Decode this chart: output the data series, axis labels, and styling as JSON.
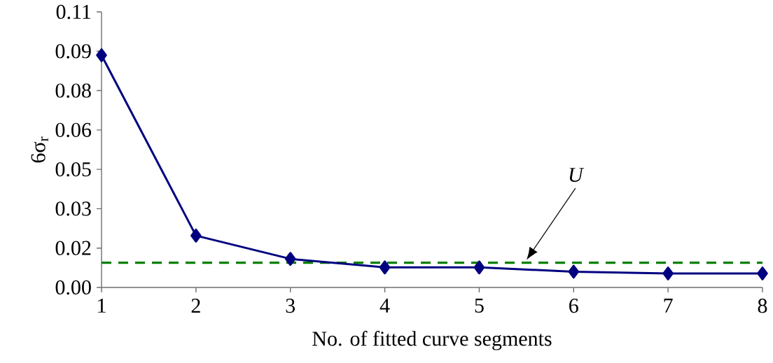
{
  "chart_data": {
    "type": "line",
    "xlabel": "No. of fitted curve segments",
    "ylabel": "6σ$_{r}$",
    "x": [
      1,
      2,
      3,
      4,
      5,
      6,
      7,
      8
    ],
    "series": [
      {
        "color": "#000080",
        "values": [
          0.0927,
          0.0207,
          0.0114,
          0.008,
          0.008,
          0.0063,
          0.0056,
          0.0056
        ]
      }
    ],
    "marker": "diamond",
    "line_style": "solid",
    "grid": false,
    "xlim": [
      1,
      8
    ],
    "xticks": [
      1,
      2,
      3,
      4,
      5,
      6,
      7,
      8
    ],
    "ylim": [
      0,
      0.11
    ],
    "yticks": [
      {
        "value": 0,
        "label": "0.00"
      },
      {
        "value": 0.015714,
        "label": "0.02"
      },
      {
        "value": 0.031429,
        "label": "0.03"
      },
      {
        "value": 0.047143,
        "label": "0.05"
      },
      {
        "value": 0.062857,
        "label": "0.06"
      },
      {
        "value": 0.078571,
        "label": "0.08"
      },
      {
        "value": 0.094286,
        "label": "0.09"
      },
      {
        "value": 0.11,
        "label": "0.11"
      }
    ],
    "ref_lines": [
      {
        "axis": "y",
        "value": 0.0099,
        "color": "#008000",
        "line_style": "dashed"
      }
    ],
    "annotations": [
      "U"
    ]
  }
}
